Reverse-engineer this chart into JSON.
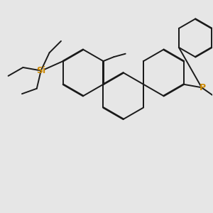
{
  "background_color": "#e6e6e6",
  "bond_color": "#1a1a1a",
  "P_color": "#cc8800",
  "Si_color": "#cc8800",
  "bond_width": 1.4,
  "dbo": 0.013,
  "figsize": [
    3.0,
    3.0
  ],
  "dpi": 100
}
